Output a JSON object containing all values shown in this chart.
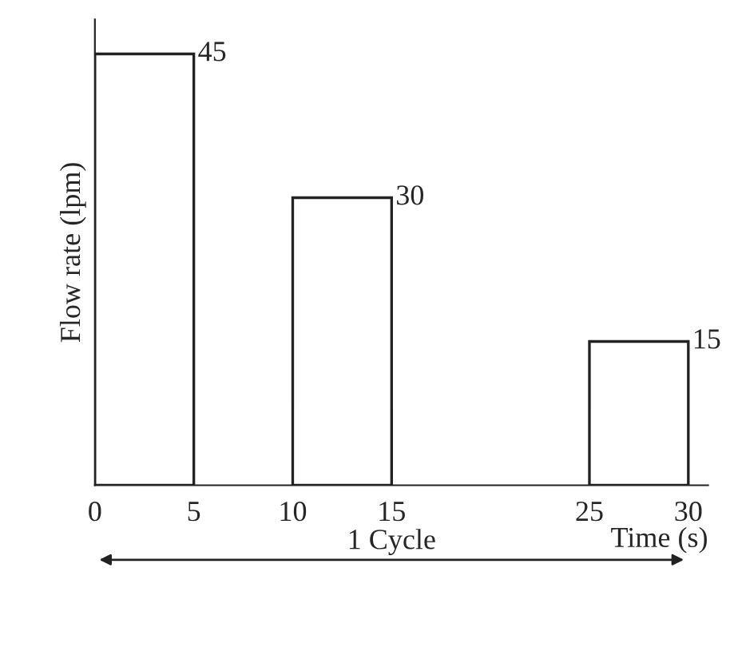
{
  "chart_data": {
    "type": "bar",
    "xlabel": "Time (s)",
    "ylabel": "Flow rate (lpm)",
    "x": [
      2.5,
      12.5,
      27.5
    ],
    "values": [
      45,
      30,
      15
    ],
    "color": "#ffffff",
    "xlim": [
      0,
      31
    ],
    "xticks": [
      0,
      5,
      10,
      15,
      25,
      30
    ],
    "data_labels": true,
    "tick_labels": "x",
    "grid": false,
    "legend": false,
    "annotations": [
      "1 Cycle"
    ]
  }
}
